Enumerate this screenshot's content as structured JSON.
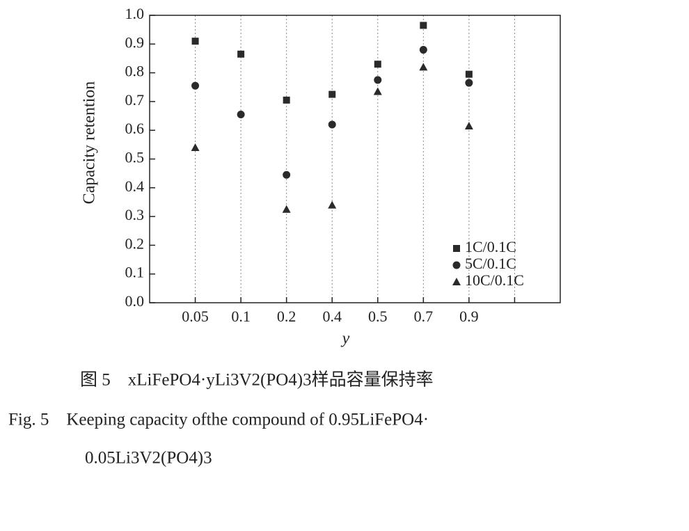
{
  "chart_data": {
    "type": "scatter",
    "y_label": "Capacity retention",
    "x_label": "y",
    "categories": [
      "0.05",
      "0.1",
      "0.2",
      "0.4",
      "0.5",
      "0.7",
      "0.9",
      null
    ],
    "series": [
      {
        "name": "1C/0.1C",
        "marker": "square",
        "color": "#2a2a2a",
        "values": [
          0.91,
          0.865,
          0.705,
          0.725,
          0.83,
          0.965,
          0.795,
          null
        ]
      },
      {
        "name": "5C/0.1C",
        "marker": "circle",
        "color": "#2a2a2a",
        "values": [
          0.755,
          0.655,
          0.445,
          0.62,
          0.775,
          0.88,
          0.765,
          null
        ]
      },
      {
        "name": "10C/0.1C",
        "marker": "triangle",
        "color": "#2a2a2a",
        "values": [
          0.54,
          null,
          0.325,
          0.34,
          0.735,
          0.82,
          0.615,
          null
        ]
      }
    ],
    "ylim": [
      0,
      1
    ],
    "yticks": [
      {
        "value": 0,
        "label": "0.0"
      },
      0.1,
      0.2,
      0.3,
      0.4,
      0.5,
      0.6,
      0.7,
      0.8,
      0.9,
      {
        "value": 1,
        "label": "1.0"
      }
    ],
    "grid": "categories",
    "legend": "lower right"
  },
  "captions": [
    "图 5　xLiFePO4·yLi3V2(PO4)3样品容量保持率",
    "Fig. 5　Keeping capacity ofthe compound of 0.95LiFePO4·",
    "0.05Li3V2(PO4)3"
  ]
}
